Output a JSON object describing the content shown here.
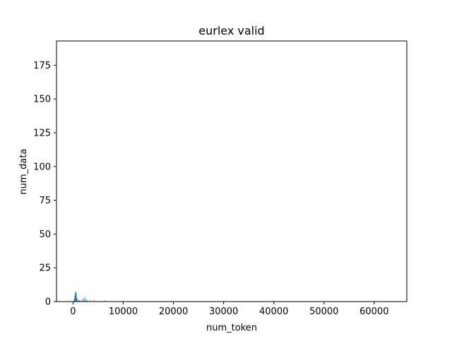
{
  "chart_data": {
    "type": "bar",
    "title": "eurlex valid",
    "xlabel": "num_token",
    "ylabel": "num_data",
    "xlim": [
      -3300,
      66500
    ],
    "ylim": [
      0,
      193
    ],
    "xticks": [
      0,
      10000,
      20000,
      30000,
      40000,
      50000,
      60000
    ],
    "xtick_labels": [
      "0",
      "10000",
      "20000",
      "30000",
      "40000",
      "50000",
      "60000"
    ],
    "yticks": [
      0,
      25,
      50,
      75,
      100,
      125,
      150,
      175
    ],
    "ytick_labels": [
      "0",
      "25",
      "50",
      "75",
      "100",
      "125",
      "150",
      "175"
    ],
    "grid": false,
    "bar_color": "#1f77b4",
    "bar_width": 64,
    "x": [
      200,
      300,
      400,
      500,
      600,
      700,
      900,
      1100,
      1300,
      1600,
      1900,
      2200,
      2500,
      2800,
      3500,
      4200,
      6200
    ],
    "values": [
      2,
      4,
      7,
      6,
      7,
      3,
      2,
      1,
      1,
      1,
      2,
      3,
      2,
      1,
      1,
      1,
      1
    ]
  }
}
